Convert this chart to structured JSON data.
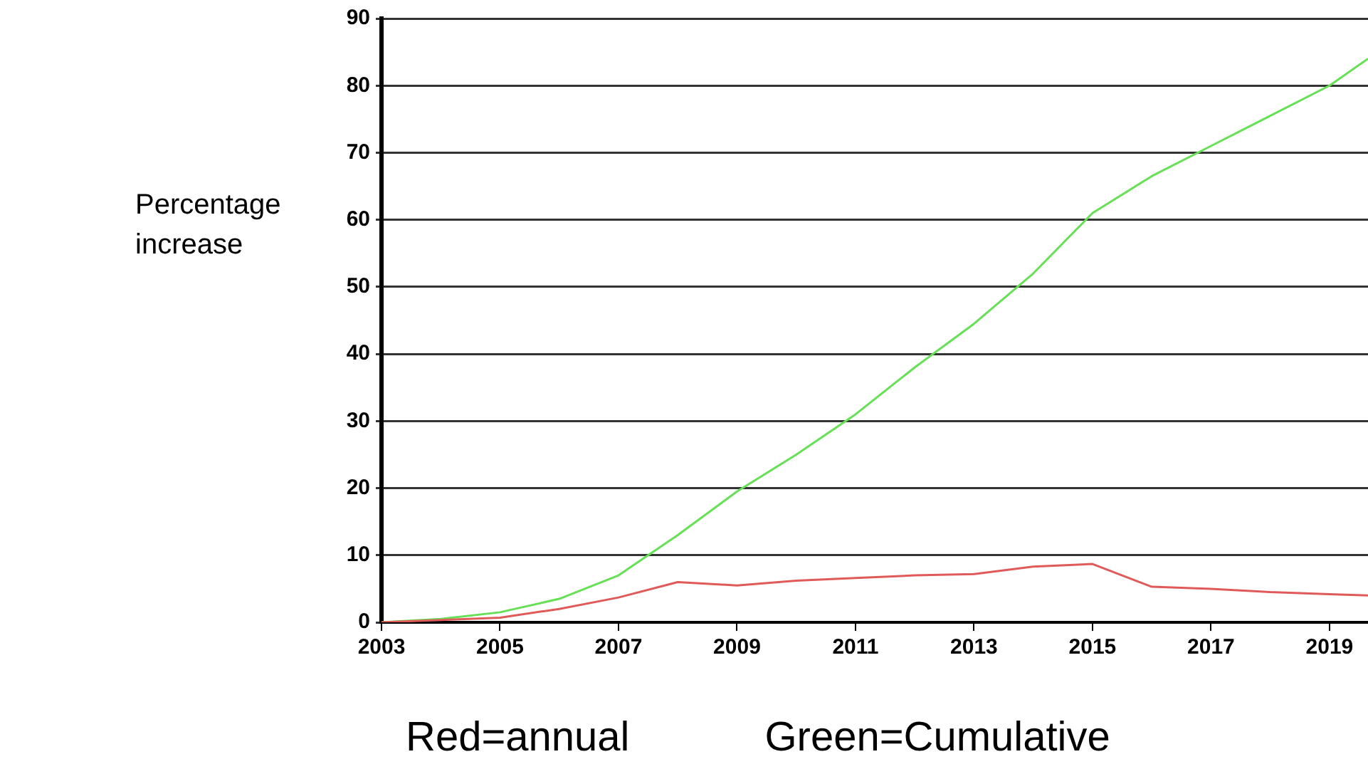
{
  "chart_data": {
    "type": "line",
    "ylabel": "Percentage increase",
    "annotations": [
      "Red=annual",
      "Green=Cumulative"
    ],
    "xlim": [
      2003,
      2019.65
    ],
    "xticks": [
      2003,
      2005,
      2007,
      2009,
      2011,
      2013,
      2015,
      2017,
      2019
    ],
    "ylim": [
      0,
      90
    ],
    "yticks": [
      0,
      10,
      20,
      30,
      40,
      50,
      60,
      70,
      80,
      90
    ],
    "grid": "y",
    "legend": false,
    "marker": "none",
    "line_style": "solid",
    "series": [
      {
        "color": "#e05a5a",
        "x": [
          2003,
          2005,
          2006,
          2007,
          2008,
          2009,
          2010,
          2011,
          2012,
          2013,
          2014,
          2015,
          2016,
          2017,
          2018,
          2019,
          2019.65
        ],
        "values": [
          0,
          0.7,
          2,
          3.7,
          6,
          5.5,
          6.2,
          6.6,
          7,
          7.2,
          8.3,
          8.7,
          5.3,
          5,
          4.5,
          4.2,
          4
        ]
      },
      {
        "color": "#66e055",
        "x": [
          2003,
          2004,
          2005,
          2006,
          2007,
          2008,
          2009,
          2010,
          2011,
          2012,
          2013,
          2014,
          2015,
          2016,
          2017,
          2018,
          2019,
          2019.65
        ],
        "values": [
          0,
          0.5,
          1.5,
          3.5,
          7,
          13,
          19.5,
          25,
          31,
          38,
          44.5,
          52,
          61,
          66.5,
          71,
          75.5,
          80,
          84
        ]
      }
    ]
  }
}
